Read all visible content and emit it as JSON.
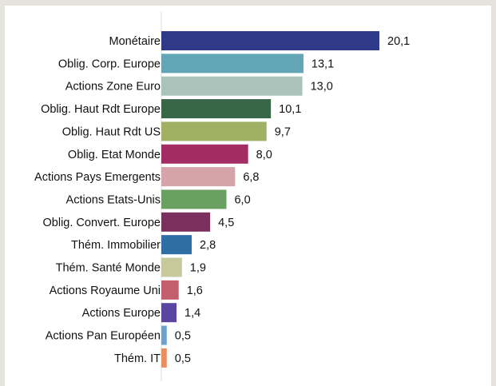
{
  "chart_data": {
    "type": "bar",
    "orientation": "horizontal",
    "title": "",
    "xlabel": "",
    "ylabel": "",
    "grid": false,
    "xlim": [
      0,
      20.1
    ],
    "categories": [
      "Monétaire",
      "Oblig. Corp. Europe",
      "Actions Zone Euro",
      "Oblig. Haut Rdt Europe",
      "Oblig. Haut Rdt US",
      "Oblig. Etat Monde",
      "Actions Pays Emergents",
      "Actions Etats-Unis",
      "Oblig. Convert. Europe",
      "Thém. Immobilier",
      "Thém. Santé Monde",
      "Actions Royaume Uni",
      "Actions Europe",
      "Actions Pan Européen",
      "Thém. IT"
    ],
    "values": [
      20.1,
      13.1,
      13.0,
      10.1,
      9.7,
      8.0,
      6.8,
      6.0,
      4.5,
      2.8,
      1.9,
      1.6,
      1.4,
      0.5,
      0.5
    ],
    "value_labels": [
      "20,1",
      "13,1",
      "13,0",
      "10,1",
      "9,7",
      "8,0",
      "6,8",
      "6,0",
      "4,5",
      "2,8",
      "1,9",
      "1,6",
      "1,4",
      "0,5",
      "0,5"
    ],
    "colors": [
      "#2e3a87",
      "#62a6b5",
      "#aac3bb",
      "#386747",
      "#a2b063",
      "#a32d63",
      "#d4a4a8",
      "#6aa162",
      "#7b2f5c",
      "#2f6ea4",
      "#c7c89c",
      "#c35f6c",
      "#5a46a0",
      "#6fa1cf",
      "#e98e5f"
    ]
  }
}
